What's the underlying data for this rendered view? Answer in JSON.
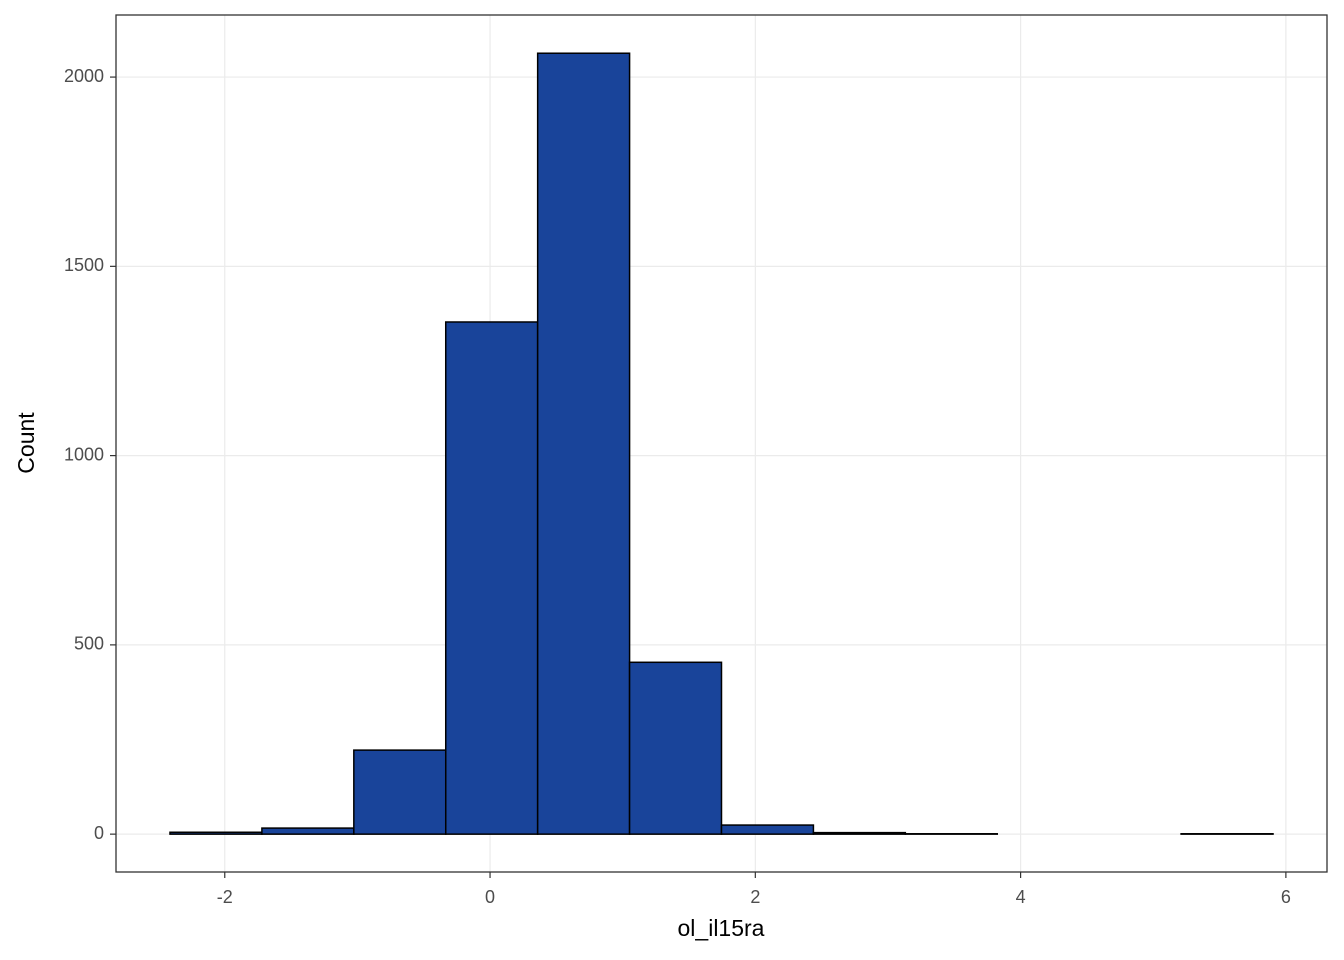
{
  "chart_data": {
    "type": "histogram",
    "x_label": "ol_il15ra",
    "y_label": "Count",
    "bins": [
      -2.413,
      -1.72,
      -1.027,
      -0.334,
      0.359,
      1.052,
      1.745,
      2.438,
      3.131,
      3.824,
      4.517,
      5.21,
      5.903
    ],
    "values": [
      5,
      16,
      222,
      1353,
      2063,
      454,
      24,
      4,
      1,
      0,
      0,
      1
    ],
    "color": "#19449a",
    "edgecolor": "#000000",
    "xlim": [
      -2.82,
      6.31
    ],
    "xticks": [
      -2,
      0,
      2,
      4,
      6
    ],
    "ylim": [
      -100,
      2164
    ],
    "yticks": [
      0,
      500,
      1000,
      1500,
      2000
    ],
    "grid": true
  }
}
